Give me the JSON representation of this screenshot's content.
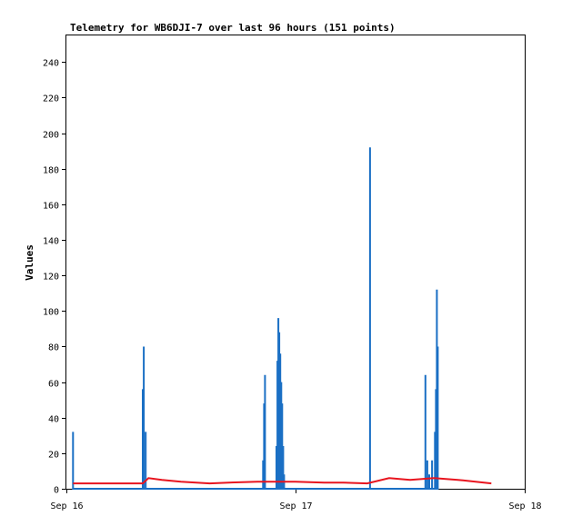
{
  "chart_data": {
    "type": "line",
    "title": "Telemetry for WB6DJI-7 over last 96 hours (151 points)",
    "xlabel": "",
    "ylabel": "Values",
    "xlim": [
      0,
      48
    ],
    "ylim": [
      0,
      255
    ],
    "x_ticks": [
      {
        "x": 0,
        "label": "Sep 16"
      },
      {
        "x": 24,
        "label": "Sep 17"
      },
      {
        "x": 48,
        "label": "Sep 18"
      }
    ],
    "y_ticks": [
      0,
      20,
      40,
      60,
      80,
      100,
      120,
      140,
      160,
      180,
      200,
      220,
      240
    ],
    "grid": false,
    "series": [
      {
        "name": "",
        "color": "#1a6fc4",
        "points": [
          [
            0.7,
            0
          ],
          [
            0.7,
            32
          ],
          [
            0.7,
            0
          ],
          [
            8.0,
            0
          ],
          [
            8.0,
            56
          ],
          [
            8.0,
            0
          ],
          [
            8.1,
            0
          ],
          [
            8.1,
            80
          ],
          [
            8.1,
            0
          ],
          [
            8.3,
            0
          ],
          [
            8.3,
            32
          ],
          [
            8.3,
            0
          ],
          [
            20.6,
            0
          ],
          [
            20.6,
            16
          ],
          [
            20.6,
            0
          ],
          [
            20.7,
            0
          ],
          [
            20.7,
            48
          ],
          [
            20.7,
            0
          ],
          [
            20.8,
            0
          ],
          [
            20.8,
            64
          ],
          [
            20.8,
            0
          ],
          [
            22.0,
            0
          ],
          [
            22.0,
            24
          ],
          [
            22.0,
            0
          ],
          [
            22.1,
            0
          ],
          [
            22.1,
            72
          ],
          [
            22.1,
            0
          ],
          [
            22.2,
            0
          ],
          [
            22.2,
            96
          ],
          [
            22.2,
            0
          ],
          [
            22.3,
            0
          ],
          [
            22.3,
            88
          ],
          [
            22.3,
            0
          ],
          [
            22.4,
            0
          ],
          [
            22.4,
            76
          ],
          [
            22.4,
            0
          ],
          [
            22.5,
            0
          ],
          [
            22.5,
            60
          ],
          [
            22.5,
            0
          ],
          [
            22.6,
            0
          ],
          [
            22.6,
            48
          ],
          [
            22.6,
            0
          ],
          [
            22.7,
            0
          ],
          [
            22.7,
            24
          ],
          [
            22.7,
            0
          ],
          [
            22.8,
            0
          ],
          [
            22.8,
            8
          ],
          [
            22.8,
            0
          ],
          [
            31.8,
            0
          ],
          [
            31.8,
            192
          ],
          [
            31.8,
            0
          ],
          [
            37.6,
            0
          ],
          [
            37.6,
            64
          ],
          [
            37.6,
            0
          ],
          [
            37.8,
            0
          ],
          [
            37.8,
            16
          ],
          [
            37.8,
            0
          ],
          [
            38.0,
            0
          ],
          [
            38.0,
            8
          ],
          [
            38.0,
            0
          ],
          [
            38.3,
            0
          ],
          [
            38.3,
            16
          ],
          [
            38.3,
            0
          ],
          [
            38.6,
            0
          ],
          [
            38.6,
            32
          ],
          [
            38.6,
            0
          ],
          [
            38.7,
            0
          ],
          [
            38.7,
            56
          ],
          [
            38.7,
            0
          ],
          [
            38.8,
            0
          ],
          [
            38.8,
            112
          ],
          [
            38.8,
            0
          ],
          [
            38.9,
            0
          ],
          [
            38.9,
            80
          ],
          [
            38.9,
            0
          ]
        ]
      },
      {
        "name": "",
        "color": "#e8141e",
        "points": [
          [
            0.7,
            3
          ],
          [
            8.0,
            3
          ],
          [
            8.6,
            6
          ],
          [
            10.0,
            5
          ],
          [
            12.0,
            4
          ],
          [
            15.0,
            3
          ],
          [
            17.0,
            3.5
          ],
          [
            20.0,
            4
          ],
          [
            24.0,
            4
          ],
          [
            27.0,
            3.5
          ],
          [
            29.0,
            3.5
          ],
          [
            31.5,
            3
          ],
          [
            33.8,
            6
          ],
          [
            36.0,
            5
          ],
          [
            38.5,
            6
          ],
          [
            41.0,
            5
          ],
          [
            44.5,
            3
          ]
        ]
      }
    ]
  }
}
